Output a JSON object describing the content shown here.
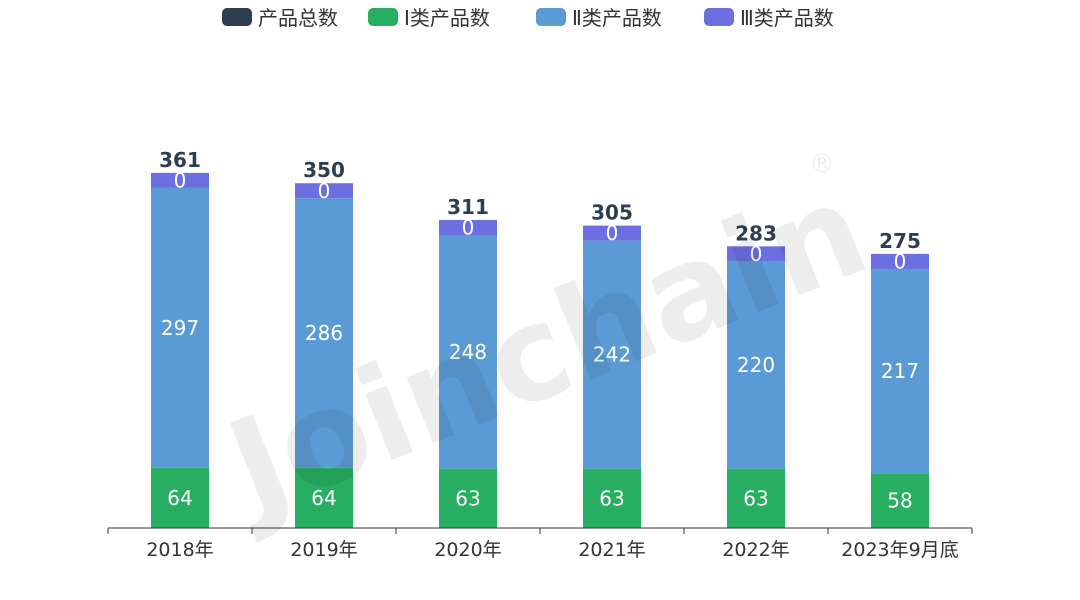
{
  "watermark": {
    "text": "Joinchain",
    "mark": "®"
  },
  "chart_data": {
    "type": "bar",
    "stacked": true,
    "title": "",
    "xlabel": "",
    "ylabel": "",
    "ylim": [
      0,
      400
    ],
    "grid": false,
    "legend_position": "top-center",
    "categories": [
      "2018年",
      "2019年",
      "2020年",
      "2021年",
      "2022年",
      "2023年9月底"
    ],
    "totals": {
      "name": "产品总数",
      "color": "#2c3e50",
      "values": [
        361,
        350,
        311,
        305,
        283,
        275
      ]
    },
    "series": [
      {
        "name": "Ⅰ类产品数",
        "color": "#27ae60",
        "values": [
          64,
          64,
          63,
          63,
          63,
          58
        ]
      },
      {
        "name": "Ⅱ类产品数",
        "color": "#5b9bd5",
        "values": [
          297,
          286,
          248,
          242,
          220,
          217
        ]
      },
      {
        "name": "Ⅲ类产品数",
        "color": "#6c6fe0",
        "values": [
          0,
          0,
          0,
          0,
          0,
          0
        ]
      }
    ],
    "zero_segment_visual_value": 16
  }
}
